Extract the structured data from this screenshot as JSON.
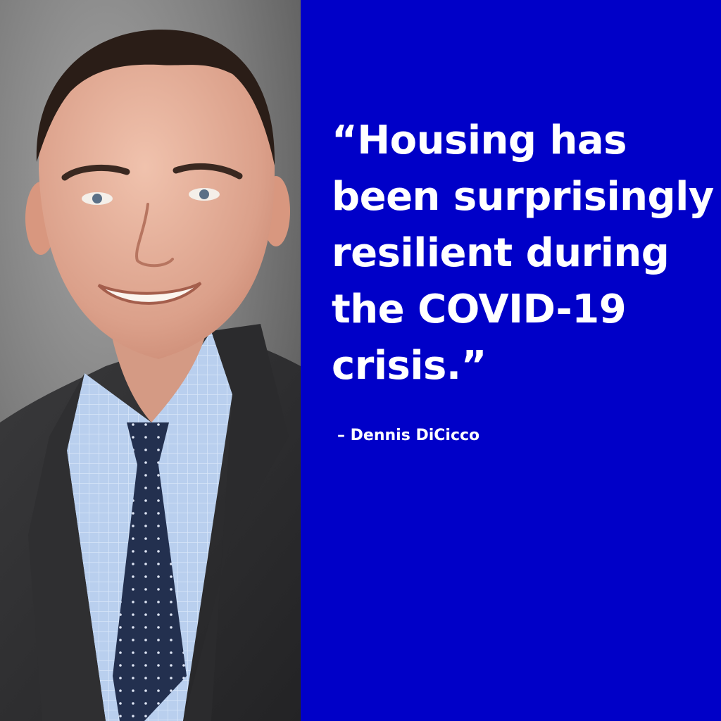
{
  "quote": {
    "lines": [
      "“Housing has",
      "been surprisingly",
      "resilient during",
      "the COVID-19",
      "crisis.”"
    ],
    "attribution": "– Dennis DiCicco"
  },
  "colors": {
    "panel_background": "#0000c8",
    "text": "#ffffff"
  }
}
